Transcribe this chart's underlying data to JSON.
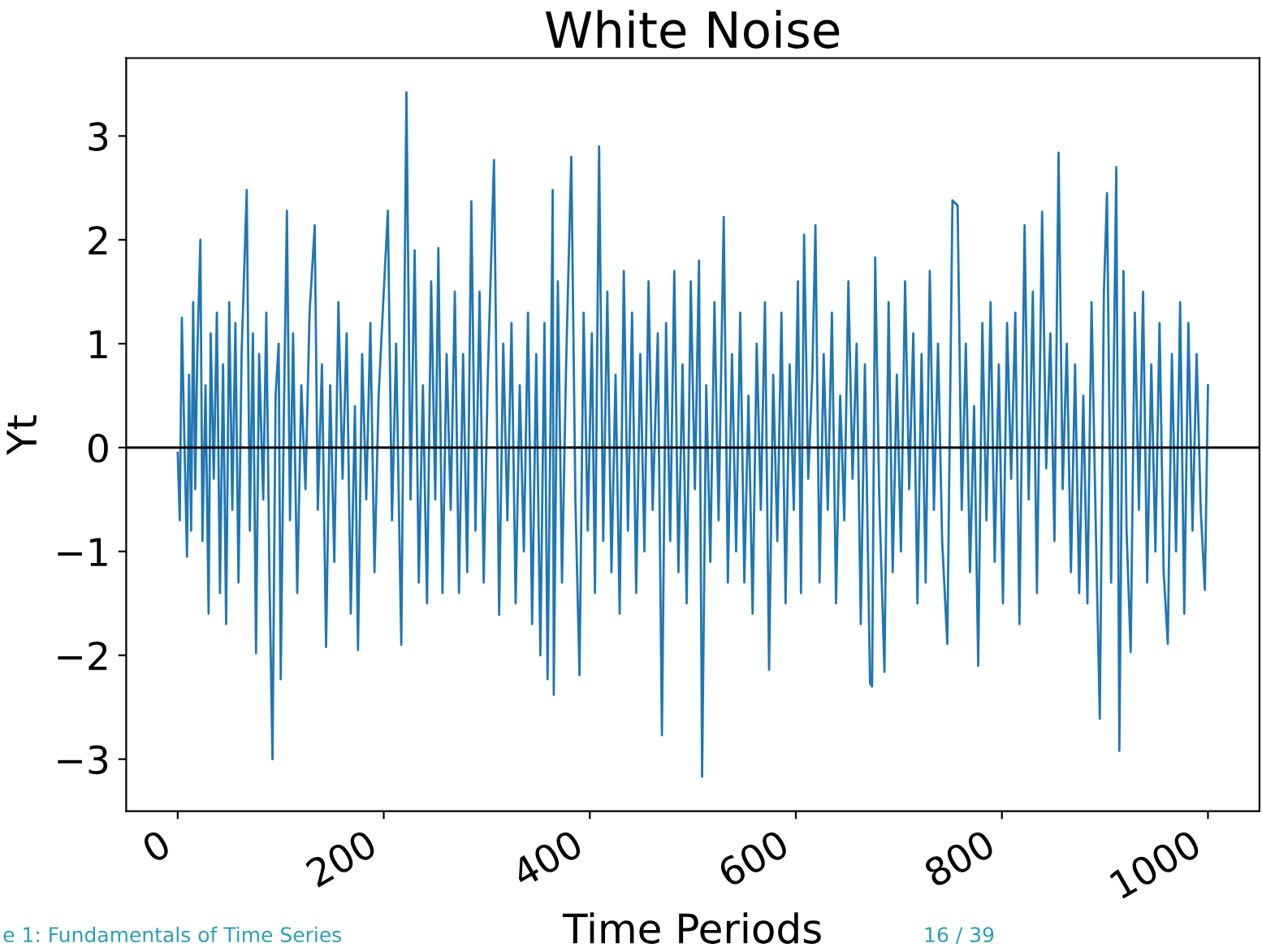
{
  "chart_data": {
    "type": "line",
    "title": "White Noise",
    "xlabel": "Time Periods",
    "ylabel": "Yt",
    "x": [
      0,
      2,
      4,
      6,
      9,
      11,
      13,
      15,
      17,
      19,
      22,
      24,
      27,
      30,
      32,
      35,
      38,
      41,
      44,
      47,
      50,
      53,
      56,
      59,
      62,
      67,
      70,
      73,
      76,
      79,
      83,
      86,
      89,
      92,
      95,
      98,
      100,
      103,
      106,
      109,
      112,
      116,
      120,
      124,
      128,
      133,
      136,
      140,
      144,
      148,
      152,
      156,
      160,
      164,
      168,
      172,
      175,
      179,
      183,
      187,
      191,
      195,
      200,
      204,
      208,
      212,
      217,
      222,
      226,
      230,
      234,
      238,
      242,
      246,
      250,
      253,
      257,
      261,
      265,
      269,
      273,
      277,
      281,
      285,
      289,
      293,
      297,
      301,
      307,
      312,
      316,
      320,
      324,
      328,
      332,
      336,
      340,
      344,
      348,
      352,
      356,
      359,
      362,
      364,
      365,
      369,
      373,
      377,
      382,
      386,
      390,
      394,
      398,
      402,
      405,
      409,
      413,
      417,
      421,
      425,
      429,
      433,
      437,
      441,
      445,
      449,
      453,
      457,
      461,
      466,
      470,
      474,
      478,
      482,
      486,
      490,
      494,
      498,
      502,
      506,
      509,
      513,
      517,
      521,
      525,
      530,
      534,
      538,
      542,
      546,
      550,
      554,
      558,
      562,
      566,
      570,
      574,
      578,
      582,
      586,
      590,
      594,
      598,
      602,
      605,
      608,
      612,
      616,
      619,
      623,
      627,
      631,
      635,
      639,
      643,
      647,
      651,
      655,
      659,
      663,
      667,
      672,
      674,
      677,
      681,
      686,
      690,
      694,
      698,
      702,
      706,
      710,
      714,
      718,
      722,
      726,
      730,
      734,
      738,
      742,
      747,
      752,
      757,
      761,
      765,
      769,
      773,
      777,
      781,
      785,
      789,
      793,
      797,
      801,
      805,
      809,
      813,
      817,
      822,
      826,
      830,
      834,
      839,
      843,
      847,
      851,
      855,
      859,
      863,
      867,
      871,
      875,
      879,
      883,
      887,
      891,
      895,
      899,
      902,
      906,
      911,
      914,
      918,
      921,
      925,
      929,
      933,
      937,
      941,
      945,
      949,
      953,
      957,
      961,
      965,
      969,
      973,
      977,
      981,
      985,
      989,
      993,
      997,
      1000
    ],
    "series": [
      {
        "color": "#1f77b4",
        "values": [
          -0.05,
          -0.7,
          1.25,
          0.3,
          -1.05,
          0.7,
          -0.8,
          1.4,
          -0.4,
          0.9,
          2.0,
          -0.9,
          0.6,
          -1.6,
          1.1,
          -0.3,
          1.3,
          -1.4,
          0.8,
          -1.7,
          1.4,
          -0.6,
          1.2,
          -1.3,
          0.9,
          2.48,
          -0.8,
          1.1,
          -1.98,
          0.9,
          -0.5,
          1.3,
          -1.2,
          -3.0,
          0.5,
          1.0,
          -2.23,
          0.3,
          2.28,
          -0.7,
          1.1,
          -1.4,
          0.6,
          -0.4,
          1.3,
          2.14,
          -0.6,
          0.8,
          -1.92,
          0.6,
          -1.1,
          1.4,
          -0.3,
          1.1,
          -1.6,
          0.4,
          -1.95,
          0.9,
          -0.5,
          1.2,
          -1.2,
          0.5,
          1.5,
          2.28,
          -0.7,
          1.0,
          -1.9,
          3.42,
          -0.5,
          1.9,
          -1.3,
          0.6,
          -1.5,
          1.6,
          -0.5,
          1.92,
          -1.4,
          0.9,
          -0.6,
          1.5,
          -1.4,
          0.9,
          -1.2,
          2.37,
          -0.8,
          1.5,
          -1.3,
          0.7,
          2.77,
          -1.61,
          1.0,
          -0.7,
          1.2,
          -1.5,
          0.6,
          -1.0,
          1.3,
          -1.7,
          0.9,
          -2.0,
          1.2,
          -2.23,
          0.4,
          2.48,
          -2.38,
          1.6,
          -1.3,
          0.8,
          2.8,
          -0.5,
          -2.19,
          1.3,
          -0.8,
          1.1,
          -1.4,
          2.9,
          -0.9,
          1.5,
          -1.2,
          0.7,
          -1.6,
          1.7,
          -0.8,
          1.3,
          -1.4,
          0.9,
          -1.0,
          1.6,
          -0.6,
          1.1,
          -2.77,
          1.2,
          -0.9,
          1.7,
          -1.2,
          0.8,
          -1.5,
          1.6,
          -0.4,
          1.8,
          -3.17,
          0.6,
          -1.1,
          1.4,
          -0.7,
          2.22,
          -1.3,
          0.9,
          -1.0,
          1.3,
          -1.3,
          0.5,
          -1.6,
          1.0,
          -0.6,
          1.4,
          -2.14,
          0.7,
          -0.9,
          1.3,
          -1.5,
          0.8,
          -0.6,
          1.6,
          -1.4,
          2.05,
          -0.3,
          0.7,
          2.14,
          -1.3,
          0.9,
          -0.6,
          1.3,
          -1.5,
          0.5,
          -0.7,
          1.6,
          -0.3,
          1.0,
          -1.7,
          0.8,
          -2.27,
          -2.3,
          1.83,
          -0.5,
          -2.16,
          1.4,
          -1.2,
          0.7,
          -1.0,
          1.6,
          -0.4,
          1.1,
          -1.5,
          0.9,
          -1.3,
          1.7,
          -0.6,
          1.0,
          -0.9,
          -1.89,
          2.38,
          2.33,
          -0.6,
          1.0,
          -1.2,
          0.4,
          -2.1,
          1.2,
          -0.7,
          1.4,
          -1.1,
          0.8,
          -1.5,
          1.2,
          -0.3,
          1.3,
          -1.7,
          2.14,
          -0.5,
          1.5,
          -1.4,
          2.27,
          -0.2,
          1.1,
          -0.9,
          2.84,
          -0.4,
          1.0,
          -1.2,
          0.8,
          -1.4,
          0.5,
          -1.5,
          1.4,
          -0.7,
          -2.61,
          1.5,
          2.45,
          -1.3,
          2.7,
          -2.92,
          1.7,
          -0.8,
          -1.97,
          1.3,
          -0.6,
          1.5,
          -1.3,
          0.8,
          -1.0,
          1.2,
          -1.2,
          -1.89,
          0.9,
          -1.0,
          1.4,
          -1.6,
          1.2,
          -0.8,
          0.9,
          -0.6,
          -1.37,
          0.6
        ]
      }
    ],
    "xlim": [
      -50,
      1050
    ],
    "xticks": [
      0,
      200,
      400,
      600,
      800,
      1000
    ],
    "ylim": [
      -3.5,
      3.75
    ],
    "yticks": [
      {
        "value": -3,
        "label": "−3"
      },
      {
        "value": -2,
        "label": "−2"
      },
      {
        "value": -1,
        "label": "−1"
      },
      0,
      1,
      2,
      3
    ],
    "ref_lines": [
      {
        "axis": "y",
        "value": 0,
        "color": "#000000"
      }
    ],
    "grid": false,
    "legend": false,
    "annotations": [
      "e 1: Fundamentals of Time Series",
      "16 / 39"
    ]
  }
}
